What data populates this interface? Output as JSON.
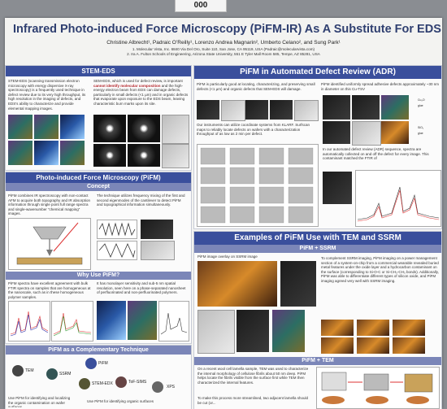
{
  "board_tag": "000",
  "title": "Infrared Photo-induced Force Microscopy (PiFM-IR) As A Substitute For EDS",
  "authors": "Christine Albrecht¹, Padraic O’Reilly¹, Lorenzo Andrea Magnarin², Umberto Celano², and Sung Park¹",
  "affiliations": [
    "1. Molecular Vista, Inc. 6840 Via Del Oro, Suite 110, San Jose, CA 95119, USA (Padraic@molecularvista.com)",
    "2. Ira A. Fulton Schools of Engineering, Arizona State University, 551 E Tyler Mall Room 585, Tempe, AZ 85281, USA"
  ],
  "stem_eds": {
    "header": "STEM-EDS",
    "text_left": "STEM-EDS (scanning transmission electron microscopy with energy dispersive X-ray spectroscopy) is a frequently used technique in defect review due to its very high throughput, its high resolution in the imaging of defects, and EDS's ability to characterize and provide elemental mapping images.",
    "text_right_pre": "SEM-EDS, which is used for defect review, is important ",
    "text_right_bold": "cannot identify molecular composition",
    "text_right_post": " and the high-energy electron beam from EDS can damage defects, particularly in small defects (<1 µm) and in organic defects that evaporate upon exposure to the EDS beam, leaving characteristic burn marks upon its site."
  },
  "pifm": {
    "header": "Photo-induced Force Microscopy (PiFM)",
    "concept_header": "Concept",
    "concept_text": "PiFM combines IR spectroscopy with non-contact AFM to acquire both topography and IR absorption information through single point full range spectra and single-wavenumber “chemical mapping” images.",
    "concept_text2": "The technique utilizes frequency mixing of the first and second eigenmodes of the cantilever to detect PiFM and topographical information simultaneously.",
    "why_header": "Why Use PiFM?",
    "why_text": "PiFM spectra have excellent agreement with bulk FTIR spectra on samples that are homogeneous at the nanoscale, such as in these homogeneous polymer samples.",
    "why_text2": "It has monolayer sensitivity and sub-5 nm spatial resolution, seen here on a phase-separated nanosheet of perfluorinated and non-perfluorinated polymers."
  },
  "complementary": {
    "header": "PiFM as a Complementary Technique",
    "nodes": [
      "TEM",
      "SSRM",
      "PiFM",
      "STEM-EDX",
      "ToF-SIMS",
      "XPS"
    ],
    "footer_left": "Use PiFM for identifying and localizing the organic contamination on wafer surfaces",
    "footer_right": "Use PiFM for identifying organic surfaces"
  },
  "adr": {
    "header": "PiFM in Automated Defect Review (ADR)",
    "text1": "PiFM is particularly good at locating, characterizing, and preserving small defects (<1 µm) and organic defects that SEM-EDS will damage.",
    "text2": "PiFM identified uniformly spread adhesive defects approximately ~30 nm in diameter on this Cu-TSV",
    "text3": "Our instruments can utilize coordinate systems from KLARF. Surfscan maps to reliably locate defects on wafers with a characterization throughput of as low as 2 min per defect.",
    "text4": "In our automated defect review (ADR) sequence, spectra are automatically collected on and off the defect for every image. This contaminant matched the FTIR of",
    "legend": [
      "Cu₂O",
      "glue",
      "SiO₂",
      "glue"
    ]
  },
  "examples": {
    "header": "Examples of PiFM Use with TEM and SSRM",
    "ssrm_header": "PiFM + SSRM",
    "ssrm_caption": "PiFM image overlay on SSRM image",
    "ssrm_text": "To complement SSRM imaging, PiFM imaging on a power management section of a system-on-chip from a commercial wearable revealed buried metal features under the oxide layer and a hydrocarbon contaminant on the surface (corresponding to Si-O-C or Si-CH₃-CH₃ bonds). Additionally, PiFM was able to differentiate different types of silicon oxide, and PiFM imaging agreed very well with SSRM imaging.",
    "tem_header": "PiFM + TEM",
    "tem_text": "On a recent wool cell lamella sample, TEM was used to characterize the internal morphology of cellulose fibrils about 50 nm deep. PiFM helps locate the fibrils visible from the surface first while TEM then characterized the internal features.",
    "tem_text2": "To make this process more streamlined, two adjacent lamella should be cut (or..."
  }
}
